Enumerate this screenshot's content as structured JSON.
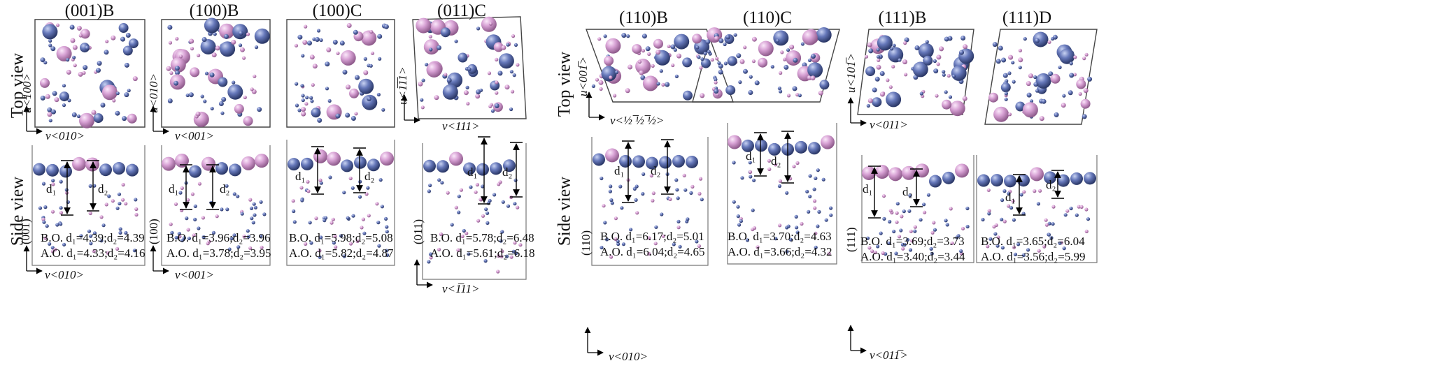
{
  "row_labels": {
    "top": "Top view",
    "side": "Side view"
  },
  "panels": [
    {
      "title": "(001)B",
      "top_x": "v<010>",
      "top_y": "u<100>",
      "side_plane": "(001)",
      "side_x": "v<010>",
      "bo": "B.O. d₁=4.39;d₂=4.39",
      "ao": "A.O. d₁=4.33;d₂=4.16",
      "d1": "d₁",
      "d2": "d₂"
    },
    {
      "title": "(100)B",
      "top_x": "v<001>",
      "top_y": "u<010>",
      "side_plane": "(100)",
      "side_x": "v<001>",
      "bo": "B.O. d₁=3.96;d₂=3.96",
      "ao": "A.O. d₁=3.78;d₂=3.95",
      "d1": "d₁",
      "d2": "d₂"
    },
    {
      "title": "(100)C",
      "bo": "B.O. d₁=5.98;d₂=5.08",
      "ao": "A.O. d₁=5.82;d₂=4.87",
      "d1": "d₁",
      "d2": "d₂"
    },
    {
      "title": "(011)C",
      "top_x": "v<111>",
      "top_y": "u<1̅1̅1>",
      "side_plane": "(011)",
      "side_x": "v<1̅11>",
      "bo": "B.O. d₁=5.78;d₂=6.48",
      "ao": "A.O. d₁=5.61;d₂=6.18",
      "d1": "d₁",
      "d2": "d₂"
    },
    {
      "title": "(110)B",
      "top_x": "v<½ ̅½ ̅½>",
      "top_y": "u<001̅>",
      "side_plane": "(110)",
      "side_x": "v<010>",
      "bo": "B.O. d₁=6.17;d₂=5.01",
      "ao": "A.O. d₁=6.04;d₂=4.65",
      "d1": "d₁",
      "d2": "d₂"
    },
    {
      "title": "(110)C",
      "bo": "B.O. d₁=3.70;d₂=4.63",
      "ao": "A.O. d₁=3.66;d₂=4.32",
      "d1": "d₁",
      "d2": "d₂"
    },
    {
      "title": "(111)B",
      "top_x": "v<011>",
      "top_y": "u<101̅>",
      "side_plane": "(111)",
      "side_x": "v<011̅>",
      "bo": "B.O. d₁=3.69;d₂=3.73",
      "ao": "A.O. d₁=3.40;d₂=3.44",
      "d1": "d₁",
      "d2": "d₂"
    },
    {
      "title": "(111)D",
      "bo": "B.O. d₁=3.65;d₂=6.04",
      "ao": "A.O. d₁=3.56;d₂=5.99",
      "d1": "d₁",
      "d2": "d₂"
    }
  ],
  "colors": {
    "blue_atom": "#5a6fb0",
    "pink_atom": "#d49cd0",
    "frame": "#555555",
    "arrow": "#000000"
  }
}
